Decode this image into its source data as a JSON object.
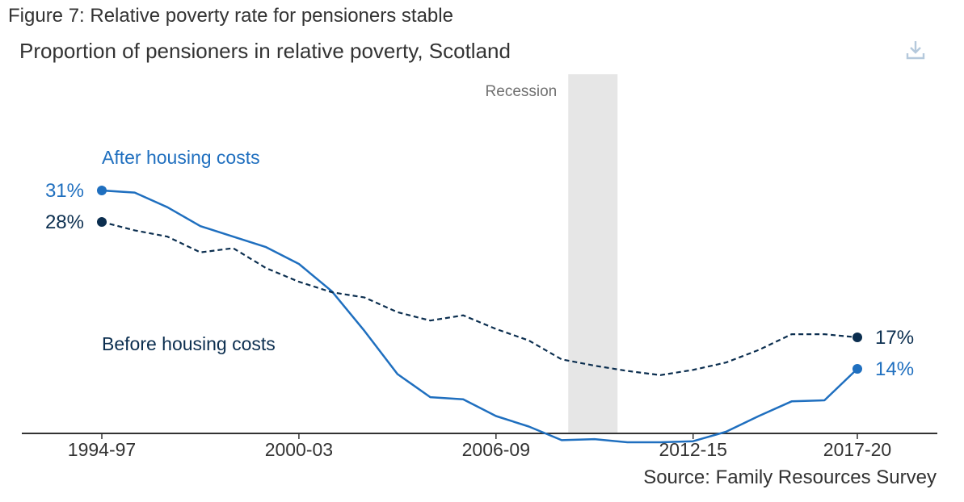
{
  "figure_title": "Figure 7: Relative poverty rate for pensioners stable",
  "chart_title": "Proportion of pensioners in relative poverty, Scotland",
  "source": "Source: Family Resources Survey",
  "icons": {
    "download": "download-icon"
  },
  "colors": {
    "ahc": "#1f6fbf",
    "bhc": "#0b2e4f",
    "recession": "#e6e6e6",
    "axis": "#333333"
  },
  "chart_data": {
    "type": "line",
    "x_tick_labels": [
      "1994-97",
      "2000-03",
      "2006-09",
      "2012-15",
      "2017-20"
    ],
    "x": [
      "1994-97",
      "1995-98",
      "1996-99",
      "1997-00",
      "1998-01",
      "1999-02",
      "2000-03",
      "2001-04",
      "2002-05",
      "2003-06",
      "2004-07",
      "2005-08",
      "2006-09",
      "2007-10",
      "2008-11",
      "2009-12",
      "2010-13",
      "2011-14",
      "2012-15",
      "2013-16",
      "2014-17",
      "2015-18",
      "2016-19",
      "2017-20"
    ],
    "series": [
      {
        "name": "After housing costs",
        "color": "#1f6fbf",
        "style": "solid",
        "values": [
          31,
          30.8,
          29.4,
          27.6,
          26.6,
          25.6,
          24,
          21.4,
          17.6,
          13.5,
          11.3,
          11.1,
          9.5,
          8.5,
          7.2,
          7.3,
          7.0,
          7.0,
          7.1,
          8.0,
          9.5,
          10.9,
          11.0,
          14
        ],
        "end_label": "14%",
        "start_label": "31%"
      },
      {
        "name": "Before housing costs",
        "color": "#0b2e4f",
        "style": "dashed",
        "values": [
          28,
          27.2,
          26.6,
          25.1,
          25.5,
          23.6,
          22.3,
          21.3,
          20.8,
          19.4,
          18.6,
          19.1,
          17.8,
          16.7,
          14.9,
          14.3,
          13.8,
          13.4,
          13.9,
          14.6,
          15.8,
          17.3,
          17.3,
          17
        ],
        "end_label": "17%",
        "start_label": "28%"
      }
    ],
    "annotations": {
      "recession": "Recession"
    },
    "shaded_region": {
      "label": "Recession",
      "from_index": 14.2,
      "to_index": 15.7
    },
    "ylim": [
      0,
      35
    ],
    "grid": false
  }
}
